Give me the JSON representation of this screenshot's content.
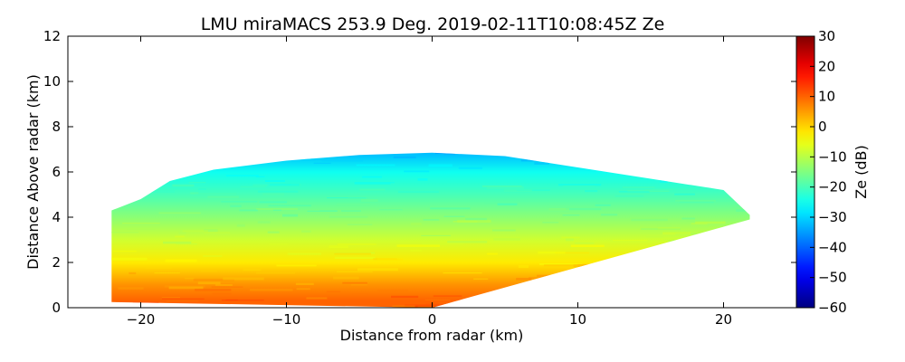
{
  "chart_data": {
    "type": "heatmap",
    "title": "LMU miraMACS 253.9 Deg. 2019-02-11T10:08:45Z  Ze",
    "xlabel": "Distance from radar (km)",
    "ylabel": "Distance Above radar  (km)",
    "xlim": [
      -25,
      25
    ],
    "ylim": [
      0,
      12
    ],
    "xticks": [
      -20,
      -10,
      0,
      10,
      20
    ],
    "xtick_labels": [
      "−20",
      "−10",
      "0",
      "10",
      "20"
    ],
    "yticks": [
      0,
      2,
      4,
      6,
      8,
      10,
      12
    ],
    "ytick_labels": [
      "0",
      "2",
      "4",
      "6",
      "8",
      "10",
      "12"
    ],
    "colorbar": {
      "label": "Ze (dB)",
      "range": [
        -60,
        30
      ],
      "ticks": [
        30,
        20,
        10,
        0,
        -10,
        -20,
        -30,
        -40,
        -50,
        -60
      ],
      "tick_labels": [
        "30",
        "20",
        "10",
        "0",
        "−10",
        "−20",
        "−30",
        "−40",
        "−50",
        "−60"
      ],
      "colors": [
        "#00007f",
        "#0000ff",
        "#007fff",
        "#00ffff",
        "#7fff7f",
        "#ffff00",
        "#ff7f00",
        "#ff0000",
        "#7f0000"
      ]
    },
    "scan_domain": {
      "x_min_km": -22.2,
      "x_max_km": 21.8,
      "echo_top_profile_km": [
        {
          "x": -22.0,
          "top": 4.3
        },
        {
          "x": -20.0,
          "top": 4.8
        },
        {
          "x": -18.0,
          "top": 5.6
        },
        {
          "x": -15.0,
          "top": 6.1
        },
        {
          "x": -10.0,
          "top": 6.5
        },
        {
          "x": -5.0,
          "top": 6.75
        },
        {
          "x": 0.0,
          "top": 6.85
        },
        {
          "x": 5.0,
          "top": 6.7
        },
        {
          "x": 10.0,
          "top": 6.2
        },
        {
          "x": 15.0,
          "top": 5.7
        },
        {
          "x": 20.0,
          "top": 5.2
        },
        {
          "x": 21.8,
          "top": 4.1
        }
      ],
      "bottom_profile_km": [
        {
          "x": -22.0,
          "bottom": 0.25
        },
        {
          "x": 0.0,
          "bottom": 0.0
        },
        {
          "x": 21.8,
          "bottom": 3.9
        }
      ]
    },
    "reflectivity_layers": [
      {
        "height_km": 6.8,
        "ze_db": -32
      },
      {
        "height_km": 6.0,
        "ze_db": -25
      },
      {
        "height_km": 5.0,
        "ze_db": -20
      },
      {
        "height_km": 4.0,
        "ze_db": -14
      },
      {
        "height_km": 3.0,
        "ze_db": -8
      },
      {
        "height_km": 2.0,
        "ze_db": -2
      },
      {
        "height_km": 1.0,
        "ze_db": 6
      },
      {
        "height_km": 0.3,
        "ze_db": 10
      }
    ]
  }
}
